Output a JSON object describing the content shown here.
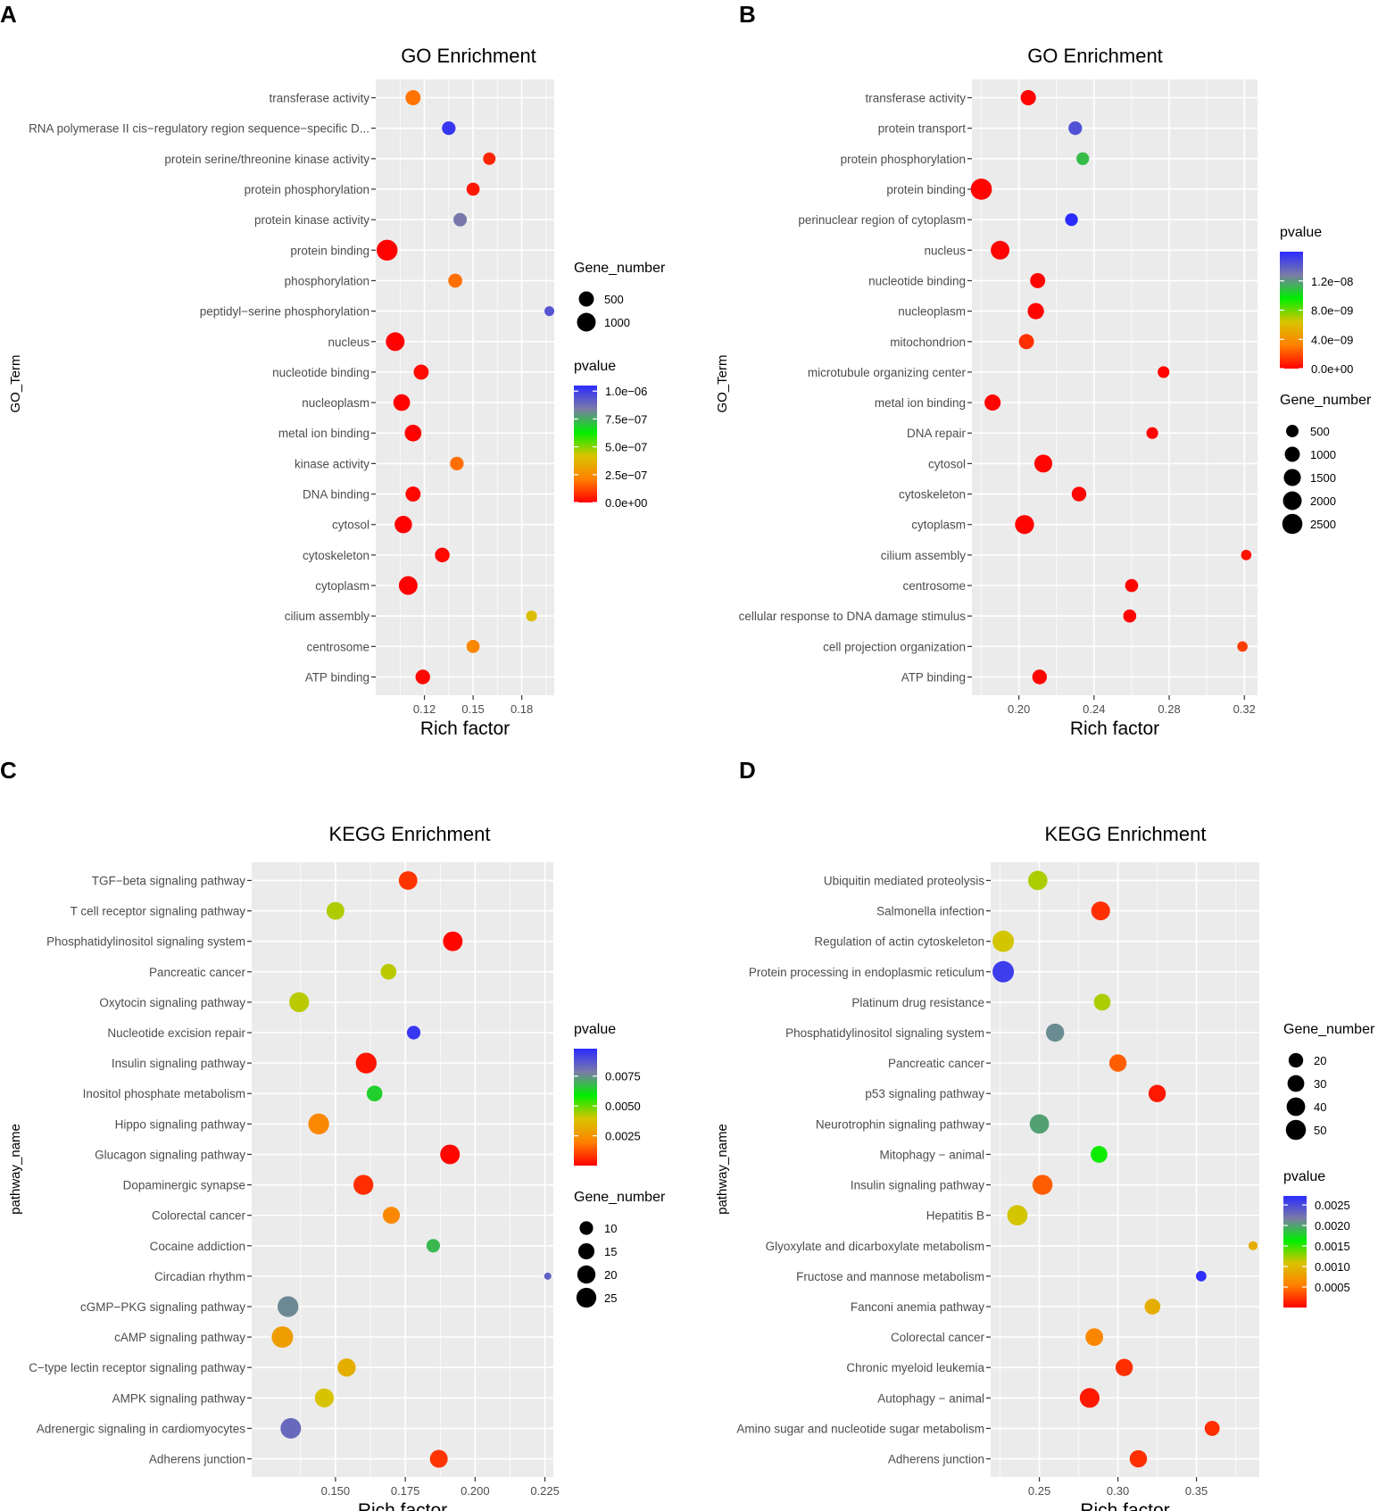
{
  "chart_data": [
    {
      "type": "scatter",
      "panel": "A",
      "title": "GO Enrichment",
      "xlabel": "Rich factor",
      "ylabel": "GO_Term",
      "xlim": [
        0.09,
        0.2
      ],
      "xticks": [
        0.12,
        0.15,
        0.18
      ],
      "xtick_labels": [
        "0.12",
        "0.15",
        "0.18"
      ],
      "color_legend": {
        "title": "pvalue",
        "min": 0,
        "max": 1.05e-06,
        "stops": [
          "#ff0000",
          "#ff8000",
          "#d8c400",
          "#00ee00",
          "#7b7ba8",
          "#2b2bff"
        ],
        "ticks": [
          1e-06,
          7.5e-07,
          5e-07,
          2.5e-07,
          0
        ],
        "labels": [
          "1.0e−06",
          "7.5e−07",
          "5.0e−07",
          "2.5e−07",
          "0.0e+00"
        ]
      },
      "size_legend": {
        "title": "Gene_number",
        "values": [
          500,
          1000
        ],
        "labels": [
          "500",
          "1000"
        ]
      },
      "size_scale": {
        "min": 50,
        "max": 1500
      },
      "points": [
        {
          "term": "transferase activity",
          "rich_factor": 0.113,
          "gene_number": 500,
          "pvalue": 1.9e-07
        },
        {
          "term": "RNA polymerase II cis−regulatory region sequence−specific D...",
          "rich_factor": 0.135,
          "gene_number": 350,
          "pvalue": 1.02e-06
        },
        {
          "term": "protein serine/threonine kinase activity",
          "rich_factor": 0.16,
          "gene_number": 250,
          "pvalue": 6e-08
        },
        {
          "term": "protein phosphorylation",
          "rich_factor": 0.15,
          "gene_number": 300,
          "pvalue": 4e-08
        },
        {
          "term": "protein kinase activity",
          "rich_factor": 0.142,
          "gene_number": 330,
          "pvalue": 8.5e-07
        },
        {
          "term": "protein binding",
          "rich_factor": 0.097,
          "gene_number": 1400,
          "pvalue": 1e-09
        },
        {
          "term": "phosphorylation",
          "rich_factor": 0.139,
          "gene_number": 380,
          "pvalue": 1.8e-07
        },
        {
          "term": "peptidyl−serine phosphorylation",
          "rich_factor": 0.197,
          "gene_number": 100,
          "pvalue": 9.4e-07
        },
        {
          "term": "nucleus",
          "rich_factor": 0.102,
          "gene_number": 1000,
          "pvalue": 1e-09
        },
        {
          "term": "nucleotide binding",
          "rich_factor": 0.118,
          "gene_number": 500,
          "pvalue": 2e-08
        },
        {
          "term": "nucleoplasm",
          "rich_factor": 0.106,
          "gene_number": 700,
          "pvalue": 1e-09
        },
        {
          "term": "metal ion binding",
          "rich_factor": 0.113,
          "gene_number": 700,
          "pvalue": 1e-09
        },
        {
          "term": "kinase activity",
          "rich_factor": 0.14,
          "gene_number": 350,
          "pvalue": 1.8e-07
        },
        {
          "term": "DNA binding",
          "rich_factor": 0.113,
          "gene_number": 500,
          "pvalue": 1e-08
        },
        {
          "term": "cytosol",
          "rich_factor": 0.107,
          "gene_number": 800,
          "pvalue": 1e-09
        },
        {
          "term": "cytoskeleton",
          "rich_factor": 0.131,
          "gene_number": 450,
          "pvalue": 1e-08
        },
        {
          "term": "cytoplasm",
          "rich_factor": 0.11,
          "gene_number": 1000,
          "pvalue": 1e-09
        },
        {
          "term": "cilium assembly",
          "rich_factor": 0.186,
          "gene_number": 150,
          "pvalue": 4e-07
        },
        {
          "term": "centrosome",
          "rich_factor": 0.15,
          "gene_number": 300,
          "pvalue": 2.3e-07
        },
        {
          "term": "ATP binding",
          "rich_factor": 0.119,
          "gene_number": 450,
          "pvalue": 1e-08
        }
      ]
    },
    {
      "type": "scatter",
      "panel": "B",
      "title": "GO Enrichment",
      "xlabel": "Rich factor",
      "ylabel": "GO_Term",
      "xlim": [
        0.175,
        0.327
      ],
      "xticks": [
        0.2,
        0.24,
        0.28,
        0.32
      ],
      "xtick_labels": [
        "0.20",
        "0.24",
        "0.28",
        "0.32"
      ],
      "color_legend": {
        "title": "pvalue",
        "min": 0,
        "max": 1.6e-08,
        "stops": [
          "#ff0000",
          "#ff8000",
          "#d8c400",
          "#00ee00",
          "#7b7ba8",
          "#2b2bff"
        ],
        "ticks": [
          1.2e-08,
          8e-09,
          4e-09,
          0
        ],
        "labels": [
          "1.2e−08",
          "8.0e−09",
          "4.0e−09",
          "0.0e+00"
        ]
      },
      "size_legend": {
        "title": "Gene_number",
        "values": [
          500,
          1000,
          1500,
          2000,
          2500
        ],
        "labels": [
          "500",
          "1000",
          "1500",
          "2000",
          "2500"
        ]
      },
      "size_scale": {
        "min": 100,
        "max": 3000
      },
      "points": [
        {
          "term": "transferase activity",
          "rich_factor": 0.205,
          "gene_number": 1050,
          "pvalue": 1e-10
        },
        {
          "term": "protein transport",
          "rich_factor": 0.23,
          "gene_number": 700,
          "pvalue": 1.45e-08
        },
        {
          "term": "protein phosphorylation",
          "rich_factor": 0.234,
          "gene_number": 550,
          "pvalue": 1.1e-08
        },
        {
          "term": "protein binding",
          "rich_factor": 0.18,
          "gene_number": 2900,
          "pvalue": 1e-10
        },
        {
          "term": "perinuclear region of cytoplasm",
          "rich_factor": 0.228,
          "gene_number": 550,
          "pvalue": 1.6e-08
        },
        {
          "term": "nucleus",
          "rich_factor": 0.19,
          "gene_number": 2000,
          "pvalue": 1e-10
        },
        {
          "term": "nucleotide binding",
          "rich_factor": 0.21,
          "gene_number": 1000,
          "pvalue": 1e-10
        },
        {
          "term": "nucleoplasm",
          "rich_factor": 0.209,
          "gene_number": 1300,
          "pvalue": 1e-10
        },
        {
          "term": "mitochondrion",
          "rich_factor": 0.204,
          "gene_number": 1000,
          "pvalue": 1.2e-09
        },
        {
          "term": "microtubule organizing center",
          "rich_factor": 0.277,
          "gene_number": 400,
          "pvalue": 1e-10
        },
        {
          "term": "metal ion binding",
          "rich_factor": 0.186,
          "gene_number": 1250,
          "pvalue": 1e-10
        },
        {
          "term": "DNA repair",
          "rich_factor": 0.271,
          "gene_number": 400,
          "pvalue": 1e-10
        },
        {
          "term": "cytosol",
          "rich_factor": 0.213,
          "gene_number": 1750,
          "pvalue": 1e-10
        },
        {
          "term": "cytoskeleton",
          "rich_factor": 0.232,
          "gene_number": 900,
          "pvalue": 1e-10
        },
        {
          "term": "cytoplasm",
          "rich_factor": 0.203,
          "gene_number": 2100,
          "pvalue": 1e-10
        },
        {
          "term": "cilium assembly",
          "rich_factor": 0.321,
          "gene_number": 250,
          "pvalue": 5e-10
        },
        {
          "term": "centrosome",
          "rich_factor": 0.26,
          "gene_number": 600,
          "pvalue": 1e-10
        },
        {
          "term": "cellular response to DNA damage stimulus",
          "rich_factor": 0.259,
          "gene_number": 600,
          "pvalue": 1e-10
        },
        {
          "term": "cell projection organization",
          "rich_factor": 0.319,
          "gene_number": 250,
          "pvalue": 1.5e-09
        },
        {
          "term": "ATP binding",
          "rich_factor": 0.211,
          "gene_number": 900,
          "pvalue": 1e-10
        }
      ]
    },
    {
      "type": "scatter",
      "panel": "C",
      "title": "KEGG Enrichment",
      "xlabel": "Rich factor",
      "ylabel": "pathway_name",
      "xlim": [
        0.12,
        0.228
      ],
      "xticks": [
        0.15,
        0.175,
        0.2,
        0.225
      ],
      "xtick_labels": [
        "0.150",
        "0.175",
        "0.200",
        "0.225"
      ],
      "color_legend": {
        "title": "pvalue",
        "min": 0,
        "max": 0.0098,
        "stops": [
          "#ff0000",
          "#ff8000",
          "#d8c400",
          "#00ee00",
          "#7b7ba8",
          "#2b2bff"
        ],
        "ticks": [
          0.0075,
          0.005,
          0.0025
        ],
        "labels": [
          "0.0075",
          "0.0050",
          "0.0025"
        ]
      },
      "size_legend": {
        "title": "Gene_number",
        "values": [
          10,
          15,
          20,
          25
        ],
        "labels": [
          "10",
          "15",
          "20",
          "25"
        ]
      },
      "size_scale": {
        "min": 5,
        "max": 30
      },
      "points": [
        {
          "term": "TGF−beta signaling pathway",
          "rich_factor": 0.176,
          "gene_number": 21,
          "pvalue": 0.0008
        },
        {
          "term": "T cell receptor signaling pathway",
          "rich_factor": 0.15,
          "gene_number": 19,
          "pvalue": 0.0043
        },
        {
          "term": "Phosphatidylinositol signaling system",
          "rich_factor": 0.192,
          "gene_number": 24,
          "pvalue": 0.0001
        },
        {
          "term": "Pancreatic cancer",
          "rich_factor": 0.169,
          "gene_number": 14,
          "pvalue": 0.0042
        },
        {
          "term": "Oxytocin signaling pathway",
          "rich_factor": 0.137,
          "gene_number": 25,
          "pvalue": 0.0042
        },
        {
          "term": "Nucleotide excision repair",
          "rich_factor": 0.178,
          "gene_number": 10,
          "pvalue": 0.0095
        },
        {
          "term": "Insulin signaling pathway",
          "rich_factor": 0.161,
          "gene_number": 28,
          "pvalue": 0.0003
        },
        {
          "term": "Inositol phosphate metabolism",
          "rich_factor": 0.164,
          "gene_number": 14,
          "pvalue": 0.0064
        },
        {
          "term": "Hippo signaling pathway",
          "rich_factor": 0.144,
          "gene_number": 28,
          "pvalue": 0.0022
        },
        {
          "term": "Glucagon signaling pathway",
          "rich_factor": 0.191,
          "gene_number": 24,
          "pvalue": 0.0001
        },
        {
          "term": "Dopaminergic synapse",
          "rich_factor": 0.16,
          "gene_number": 25,
          "pvalue": 0.0007
        },
        {
          "term": "Colorectal cancer",
          "rich_factor": 0.17,
          "gene_number": 17,
          "pvalue": 0.0022
        },
        {
          "term": "Cocaine addiction",
          "rich_factor": 0.185,
          "gene_number": 10,
          "pvalue": 0.0068
        },
        {
          "term": "Circadian rhythm",
          "rich_factor": 0.226,
          "gene_number": 4,
          "pvalue": 0.0085
        },
        {
          "term": "cGMP−PKG signaling pathway",
          "rich_factor": 0.133,
          "gene_number": 28,
          "pvalue": 0.0076
        },
        {
          "term": "cAMP signaling pathway",
          "rich_factor": 0.131,
          "gene_number": 32,
          "pvalue": 0.0028
        },
        {
          "term": "C−type lectin receptor signaling pathway",
          "rich_factor": 0.154,
          "gene_number": 20,
          "pvalue": 0.0033
        },
        {
          "term": "AMPK signaling pathway",
          "rich_factor": 0.146,
          "gene_number": 22,
          "pvalue": 0.0039
        },
        {
          "term": "Adrenergic signaling in cardiomyocytes",
          "rich_factor": 0.134,
          "gene_number": 27,
          "pvalue": 0.0083
        },
        {
          "term": "Adherens junction",
          "rich_factor": 0.187,
          "gene_number": 19,
          "pvalue": 0.0008
        }
      ]
    },
    {
      "type": "scatter",
      "panel": "D",
      "title": "KEGG Enrichment",
      "xlabel": "Rich factor",
      "ylabel": "pathway_name",
      "xlim": [
        0.219,
        0.39
      ],
      "xticks": [
        0.25,
        0.3,
        0.35
      ],
      "xtick_labels": [
        "0.25",
        "0.30",
        "0.35"
      ],
      "color_legend": {
        "title": "pvalue",
        "min": 0,
        "max": 0.00272,
        "stops": [
          "#ff0000",
          "#ff8000",
          "#d8c400",
          "#00ee00",
          "#7b7ba8",
          "#2b2bff"
        ],
        "ticks": [
          0.0025,
          0.002,
          0.0015,
          0.001,
          0.0005
        ],
        "labels": [
          "0.0025",
          "0.0020",
          "0.0015",
          "0.0010",
          "0.0005"
        ]
      },
      "size_legend": {
        "title": "Gene_number",
        "values": [
          20,
          30,
          40,
          50
        ],
        "labels": [
          "20",
          "30",
          "40",
          "50"
        ]
      },
      "size_scale": {
        "min": 5,
        "max": 60
      },
      "points": [
        {
          "term": "Ubiquitin mediated proteolysis",
          "rich_factor": 0.249,
          "gene_number": 45,
          "pvalue": 0.0012
        },
        {
          "term": "Salmonella infection",
          "rich_factor": 0.289,
          "gene_number": 42,
          "pvalue": 0.0002
        },
        {
          "term": "Regulation of actin cytoskeleton",
          "rich_factor": 0.227,
          "gene_number": 60,
          "pvalue": 0.0011
        },
        {
          "term": "Protein processing in endoplasmic reticulum",
          "rich_factor": 0.227,
          "gene_number": 60,
          "pvalue": 0.0026
        },
        {
          "term": "Platinum drug resistance",
          "rich_factor": 0.29,
          "gene_number": 30,
          "pvalue": 0.0012
        },
        {
          "term": "Phosphatidylinositol signaling system",
          "rich_factor": 0.26,
          "gene_number": 38,
          "pvalue": 0.0021
        },
        {
          "term": "Pancreatic cancer",
          "rich_factor": 0.3,
          "gene_number": 33,
          "pvalue": 0.0004
        },
        {
          "term": "p53 signaling pathway",
          "rich_factor": 0.325,
          "gene_number": 33,
          "pvalue": 0.0001
        },
        {
          "term": "Neurotrophin signaling pathway",
          "rich_factor": 0.25,
          "gene_number": 45,
          "pvalue": 0.002
        },
        {
          "term": "Mitophagy − animal",
          "rich_factor": 0.288,
          "gene_number": 30,
          "pvalue": 0.0016
        },
        {
          "term": "Insulin signaling pathway",
          "rich_factor": 0.252,
          "gene_number": 50,
          "pvalue": 0.0004
        },
        {
          "term": "Hepatitis B",
          "rich_factor": 0.236,
          "gene_number": 52,
          "pvalue": 0.0011
        },
        {
          "term": "Glyoxylate and dicarboxylate metabolism",
          "rich_factor": 0.386,
          "gene_number": 6,
          "pvalue": 0.0009
        },
        {
          "term": "Fructose and mannose metabolism",
          "rich_factor": 0.353,
          "gene_number": 8,
          "pvalue": 0.0027
        },
        {
          "term": "Fanconi anemia pathway",
          "rich_factor": 0.322,
          "gene_number": 25,
          "pvalue": 0.0009
        },
        {
          "term": "Colorectal cancer",
          "rich_factor": 0.285,
          "gene_number": 35,
          "pvalue": 0.0006
        },
        {
          "term": "Chronic myeloid leukemia",
          "rich_factor": 0.304,
          "gene_number": 33,
          "pvalue": 0.0002
        },
        {
          "term": "Autophagy − animal",
          "rich_factor": 0.282,
          "gene_number": 48,
          "pvalue": 0.0001
        },
        {
          "term": "Amino sugar and nucleotide sugar metabolism",
          "rich_factor": 0.36,
          "gene_number": 22,
          "pvalue": 0.0002
        },
        {
          "term": "Adherens junction",
          "rich_factor": 0.313,
          "gene_number": 33,
          "pvalue": 0.0002
        }
      ]
    }
  ]
}
